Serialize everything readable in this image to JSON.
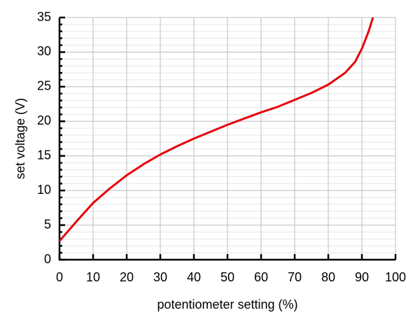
{
  "chart_data": {
    "type": "line",
    "xlabel": "potentiometer setting (%)",
    "ylabel": "set voltage (V)",
    "x": [
      0,
      5,
      10,
      15,
      20,
      25,
      30,
      35,
      40,
      45,
      50,
      55,
      60,
      65,
      70,
      75,
      80,
      85,
      88,
      90,
      92,
      93.3
    ],
    "series": [
      {
        "name": "set voltage",
        "color": "#e8000b",
        "values": [
          2.7,
          5.5,
          8.2,
          10.3,
          12.2,
          13.8,
          15.2,
          16.4,
          17.5,
          18.5,
          19.5,
          20.4,
          21.3,
          22.1,
          23.1,
          24.1,
          25.3,
          27.0,
          28.6,
          30.5,
          33.0,
          35.0
        ]
      }
    ],
    "xlim": [
      0,
      100
    ],
    "xticks": [
      0,
      10,
      20,
      30,
      40,
      50,
      60,
      70,
      80,
      90,
      100
    ],
    "ylim": [
      0,
      35
    ],
    "yticks": [
      0,
      5,
      10,
      15,
      20,
      25,
      30,
      35
    ],
    "yminorticks": [
      1,
      2,
      3,
      4,
      6,
      7,
      8,
      9,
      11,
      12,
      13,
      14,
      16,
      17,
      18,
      19,
      21,
      22,
      23,
      24,
      26,
      27,
      28,
      29,
      31,
      32,
      33,
      34
    ],
    "grid": true
  }
}
